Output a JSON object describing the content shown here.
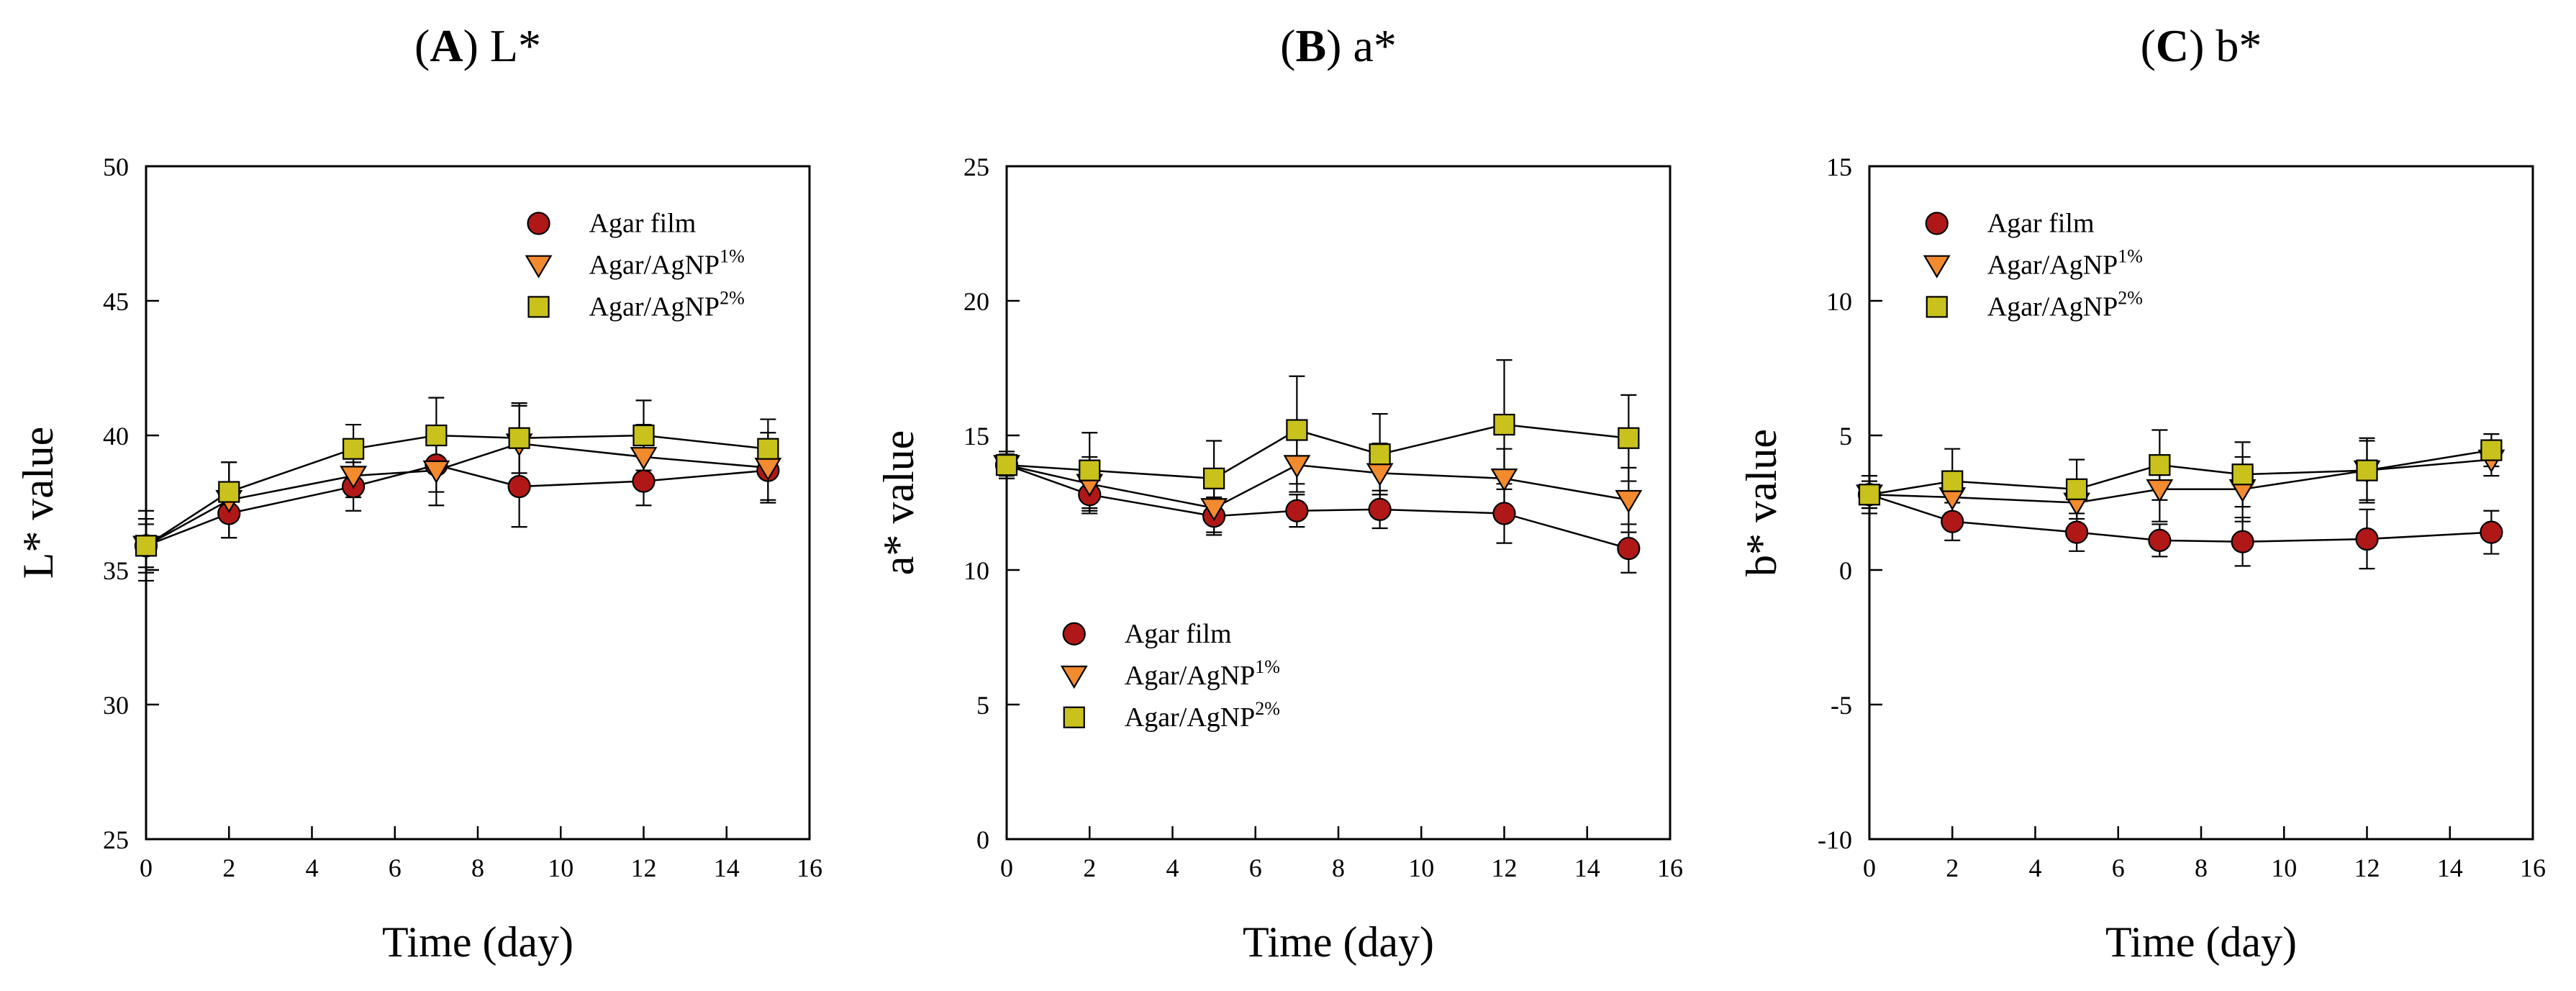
{
  "colors": {
    "agar_film": "#b01818",
    "agnp1": "#f28a2e",
    "agnp2": "#c9c21c",
    "axis": "#000000"
  },
  "chart_data": [
    {
      "type": "line",
      "panel_letter": "(A)",
      "title_var": "L*",
      "xlabel": "Time (day)",
      "ylabel": "L* value",
      "xlim": [
        0,
        16
      ],
      "ylim": [
        25,
        50
      ],
      "xticks": [
        0,
        2,
        4,
        6,
        8,
        10,
        12,
        14,
        16
      ],
      "yticks": [
        25,
        30,
        35,
        40,
        45,
        50
      ],
      "x": [
        0,
        2,
        5,
        7,
        9,
        12,
        15
      ],
      "legend_position": "top-right",
      "series": [
        {
          "name": "Agar film",
          "legend_base": "Agar film",
          "legend_sup": "",
          "marker": "circle",
          "color_key": "agar_film",
          "values": [
            35.9,
            37.1,
            38.1,
            38.9,
            38.1,
            38.3,
            38.7
          ],
          "errors": [
            1.0,
            0.9,
            0.9,
            1.0,
            1.5,
            0.9,
            1.1
          ]
        },
        {
          "name": "Agar/AgNP1%",
          "legend_base": "Agar/AgNP",
          "legend_sup": "1%",
          "marker": "triangle-down",
          "color_key": "agnp1",
          "values": [
            35.9,
            37.6,
            38.5,
            38.7,
            39.7,
            39.2,
            38.8
          ],
          "errors": [
            1.3,
            1.4,
            0.8,
            1.3,
            1.4,
            1.2,
            1.3
          ]
        },
        {
          "name": "Agar/AgNP2%",
          "legend_base": "Agar/AgNP",
          "legend_sup": "2%",
          "marker": "square",
          "color_key": "agnp2",
          "values": [
            35.9,
            37.9,
            39.5,
            40.0,
            39.9,
            40.0,
            39.5
          ],
          "errors": [
            0.8,
            1.1,
            0.9,
            1.4,
            1.3,
            1.3,
            1.1
          ]
        }
      ]
    },
    {
      "type": "line",
      "panel_letter": "(B)",
      "title_var": "a*",
      "xlabel": "Time (day)",
      "ylabel": "a* value",
      "xlim": [
        0,
        16
      ],
      "ylim": [
        0,
        25
      ],
      "xticks": [
        0,
        2,
        4,
        6,
        8,
        10,
        12,
        14,
        16
      ],
      "yticks": [
        0,
        5,
        10,
        15,
        20,
        25
      ],
      "x": [
        0,
        2,
        5,
        7,
        9,
        12,
        15
      ],
      "legend_position": "bottom-left",
      "series": [
        {
          "name": "Agar film",
          "legend_base": "Agar film",
          "legend_sup": "",
          "marker": "circle",
          "color_key": "agar_film",
          "values": [
            13.9,
            12.8,
            12.0,
            12.2,
            12.25,
            12.1,
            10.8
          ],
          "errors": [
            0.5,
            0.7,
            0.7,
            0.6,
            0.7,
            1.1,
            0.9
          ]
        },
        {
          "name": "Agar/AgNP1%",
          "legend_base": "Agar/AgNP",
          "legend_sup": "1%",
          "marker": "triangle-down",
          "color_key": "agnp1",
          "values": [
            13.9,
            13.2,
            12.3,
            13.9,
            13.6,
            13.4,
            12.6
          ],
          "errors": [
            0.5,
            1.0,
            0.9,
            1.0,
            1.1,
            1.1,
            1.2
          ]
        },
        {
          "name": "Agar/AgNP2%",
          "legend_base": "Agar/AgNP",
          "legend_sup": "2%",
          "marker": "square",
          "color_key": "agnp2",
          "values": [
            13.9,
            13.7,
            13.4,
            15.2,
            14.3,
            15.4,
            14.9
          ],
          "errors": [
            0.4,
            1.4,
            1.4,
            2.0,
            1.5,
            2.4,
            1.6
          ]
        }
      ]
    },
    {
      "type": "line",
      "panel_letter": "(C)",
      "title_var": "b*",
      "xlabel": "Time (day)",
      "ylabel": "b* value",
      "xlim": [
        0,
        16
      ],
      "ylim": [
        -10,
        15
      ],
      "xticks": [
        0,
        2,
        4,
        6,
        8,
        10,
        12,
        14,
        16
      ],
      "yticks": [
        -10,
        -5,
        0,
        5,
        10,
        15
      ],
      "x": [
        0,
        2,
        5,
        7,
        9,
        12,
        15
      ],
      "legend_position": "top-left",
      "series": [
        {
          "name": "Agar film",
          "legend_base": "Agar film",
          "legend_sup": "",
          "marker": "circle",
          "color_key": "agar_film",
          "values": [
            2.8,
            1.8,
            1.4,
            1.1,
            1.05,
            1.15,
            1.4
          ],
          "errors": [
            0.7,
            0.7,
            0.7,
            0.6,
            0.9,
            1.1,
            0.8
          ]
        },
        {
          "name": "Agar/AgNP1%",
          "legend_base": "Agar/AgNP",
          "legend_sup": "1%",
          "marker": "triangle-down",
          "color_key": "agnp1",
          "values": [
            2.8,
            2.7,
            2.5,
            3.0,
            3.0,
            3.7,
            4.1
          ],
          "errors": [
            0.5,
            0.8,
            0.8,
            1.2,
            1.2,
            1.1,
            0.6
          ]
        },
        {
          "name": "Agar/AgNP2%",
          "legend_base": "Agar/AgNP",
          "legend_sup": "2%",
          "marker": "square",
          "color_key": "agnp2",
          "values": [
            2.8,
            3.3,
            3.0,
            3.9,
            3.55,
            3.7,
            4.45
          ],
          "errors": [
            0.5,
            1.2,
            1.1,
            1.3,
            1.2,
            1.2,
            0.6
          ]
        }
      ]
    }
  ]
}
